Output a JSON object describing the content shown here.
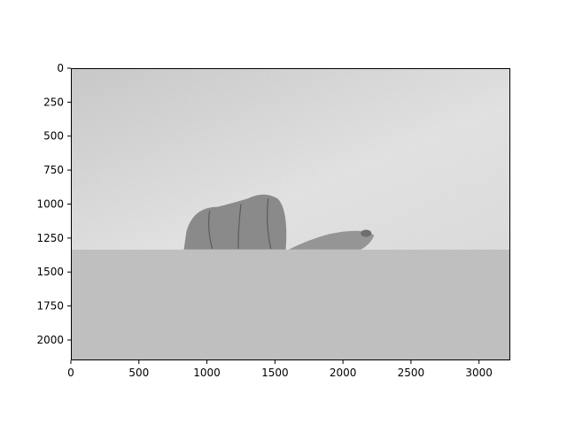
{
  "chart_data": {
    "type": "image",
    "title": "",
    "xlabel": "",
    "ylabel": "",
    "xlim": [
      0,
      3230
    ],
    "ylim": [
      2150,
      0
    ],
    "image_width": 3230,
    "image_height": 2150,
    "x_ticks": [
      0,
      500,
      1000,
      1500,
      2000,
      2500,
      3000
    ],
    "y_ticks": [
      0,
      250,
      500,
      750,
      1000,
      1250,
      1500,
      1750,
      2000
    ],
    "x_tick_labels": [
      "0",
      "500",
      "1000",
      "1500",
      "2000",
      "2500",
      "3000"
    ],
    "y_tick_labels": [
      "0",
      "250",
      "500",
      "750",
      "1000",
      "1250",
      "1500",
      "1750",
      "2000"
    ],
    "grid": false,
    "colormap": "gray",
    "image_regions": {
      "upper_photo_rows": [
        0,
        1335
      ],
      "lower_flat_rows": [
        1335,
        2150
      ],
      "lower_fill_color": "#bfbfbf",
      "wall_color_light": "#e4e4e4",
      "wall_color_dark": "#c9c9c9",
      "hand_color": "#8a8a8a"
    }
  }
}
